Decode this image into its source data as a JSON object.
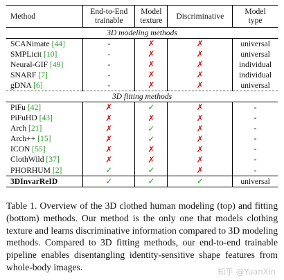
{
  "headers": {
    "method": "Method",
    "e2e": [
      "End-to-End",
      "trainable"
    ],
    "texture": [
      "Model",
      "texture"
    ],
    "disc": "Discriminative",
    "type": [
      "Model",
      "type"
    ]
  },
  "group1": "3D modeling methods",
  "group2": "3D fitting methods",
  "modeling_rows": [
    {
      "name": "SCANimate",
      "ref": "[44]",
      "e2e": "-",
      "texture": "✗",
      "disc": "✗",
      "type": "universal"
    },
    {
      "name": "SMPLicit",
      "ref": "[10]",
      "e2e": "-",
      "texture": "✗",
      "disc": "✗",
      "type": "universal"
    },
    {
      "name": "Neural-GIF",
      "ref": "[49]",
      "e2e": "-",
      "texture": "✗",
      "disc": "✗",
      "type": "individual"
    },
    {
      "name": "SNARF",
      "ref": "[7]",
      "e2e": "-",
      "texture": "✗",
      "disc": "✗",
      "type": "individual"
    },
    {
      "name": "gDNA",
      "ref": "[6]",
      "e2e": "-",
      "texture": "✗",
      "disc": "✗",
      "type": "universal"
    }
  ],
  "fitting_rows": [
    {
      "name": "PiFu",
      "ref": "[42]",
      "e2e": "✗",
      "texture": "✓",
      "disc": "✗",
      "type": "-"
    },
    {
      "name": "PiFuHD",
      "ref": "[43]",
      "e2e": "✗",
      "texture": "✗",
      "disc": "✗",
      "type": "-"
    },
    {
      "name": "Arch",
      "ref": "[21]",
      "e2e": "✗",
      "texture": "✓",
      "disc": "✗",
      "type": "-"
    },
    {
      "name": "Arch++",
      "ref": "[15]",
      "e2e": "✗",
      "texture": "✓",
      "disc": "✗",
      "type": "-"
    },
    {
      "name": "ICON",
      "ref": "[55]",
      "e2e": "✗",
      "texture": "✗",
      "disc": "✗",
      "type": "-"
    },
    {
      "name": "ClothWild",
      "ref": "[37]",
      "e2e": "✗",
      "texture": "✗",
      "disc": "✗",
      "type": "-"
    },
    {
      "name": "PHORHUM",
      "ref": "[2]",
      "e2e": "✓",
      "texture": "✓",
      "disc": "✗",
      "type": "-"
    }
  ],
  "ours_row": {
    "name": "3DInvarReID",
    "e2e": "✓",
    "texture": "✓",
    "disc": "✓",
    "type": "universal"
  },
  "caption": "Table 1. Overview of the 3D clothed human modeling (top) and fitting (bottom) methods. Our method is the only one that models clothing texture and learns discriminative information compared to 3D modeling methods. Compared to 3D fitting methods, our end-to-end trainable pipeline enables disentangling identity-sensitive shape features from whole-body images.",
  "watermark": "知乎 @YuanXin"
}
